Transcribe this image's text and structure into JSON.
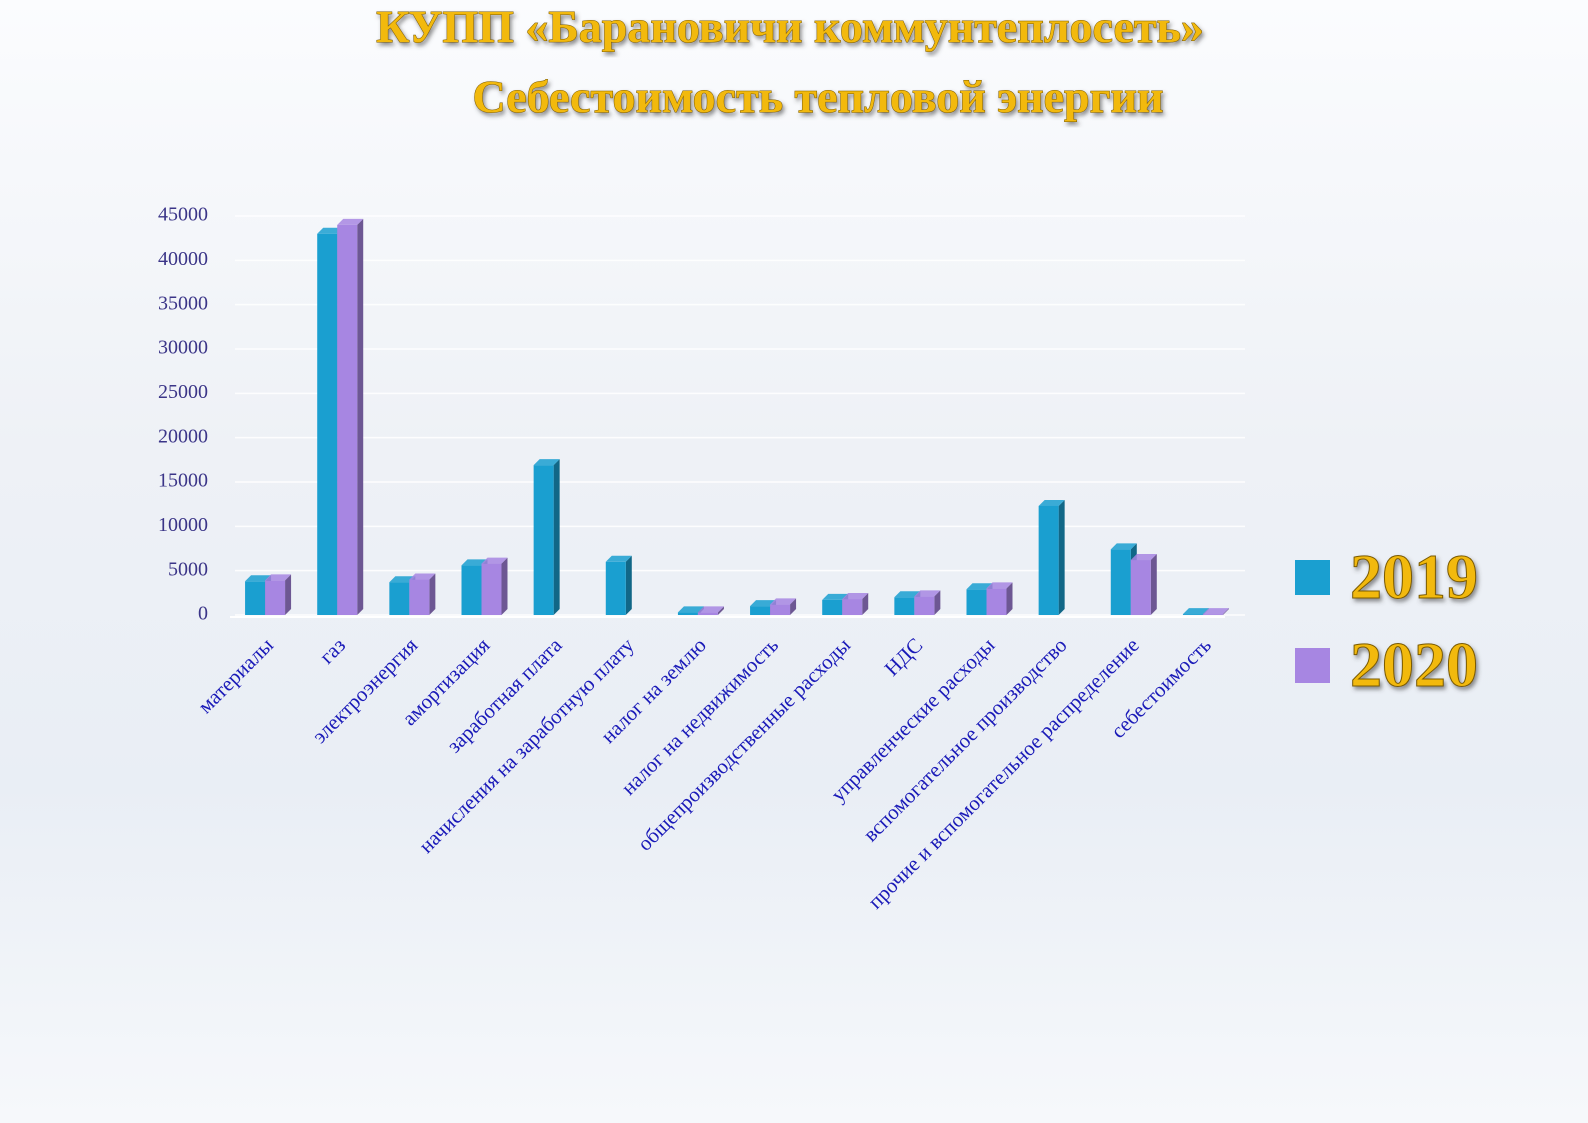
{
  "chart_data": {
    "type": "bar",
    "title": "КУПП «Барановичи коммунтеплосеть»",
    "subtitle": "Себестоимость тепловой энергии",
    "categories": [
      "материалы",
      "газ",
      "электроэнергия",
      "амортизация",
      "заработная плата",
      "начисления на заработную плату",
      "налог на землю",
      "налог на недвижимость",
      "общепроизводственные расходы",
      "НДС",
      "управленческие расходы",
      "вспомогательное производство",
      "прочие и вспомогательное распределение",
      "себестоимость"
    ],
    "series": [
      {
        "name": "2019",
        "color": "#1a9fd0",
        "values": [
          3800,
          43000,
          3700,
          5600,
          16900,
          6000,
          300,
          1000,
          1700,
          2000,
          2900,
          12300,
          7400,
          100
        ]
      },
      {
        "name": "2020",
        "color": "#a786e2",
        "values": [
          3900,
          44000,
          4000,
          5800,
          null,
          null,
          300,
          1200,
          1800,
          2100,
          3000,
          null,
          6200,
          100
        ]
      }
    ],
    "ylim": [
      0,
      45000
    ],
    "yticks": [
      0,
      5000,
      10000,
      15000,
      20000,
      25000,
      30000,
      35000,
      40000,
      45000
    ],
    "grid": true,
    "legend": "right"
  }
}
